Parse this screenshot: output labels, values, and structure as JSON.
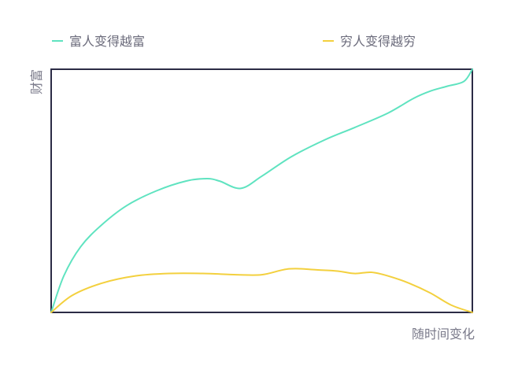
{
  "chart_data": {
    "type": "line",
    "title": "",
    "xlabel": "随时间变化",
    "ylabel": "财富",
    "xlim": [
      0,
      100
    ],
    "ylim": [
      0,
      100
    ],
    "grid": false,
    "legend_position": "top",
    "series": [
      {
        "name": "富人变得越富",
        "color": "#5fe3c0",
        "x": [
          0,
          3,
          7,
          12,
          18,
          25,
          32,
          37,
          40,
          45,
          50,
          57,
          65,
          72,
          80,
          86,
          90,
          94,
          98,
          100
        ],
        "y": [
          0,
          15,
          27,
          36,
          44,
          50,
          54,
          55,
          54,
          51,
          56,
          64,
          71,
          76,
          82,
          88,
          91,
          93,
          95,
          100
        ]
      },
      {
        "name": "穷人变得越穷",
        "color": "#f3d03e",
        "x": [
          0,
          5,
          12,
          20,
          28,
          36,
          44,
          50,
          55,
          58,
          63,
          68,
          72,
          76,
          80,
          85,
          90,
          95,
          100
        ],
        "y": [
          0,
          7,
          12,
          15,
          16,
          16,
          15.5,
          15.5,
          17.5,
          18,
          17.5,
          17,
          16,
          16.5,
          15,
          12,
          8,
          3,
          0
        ]
      }
    ]
  }
}
